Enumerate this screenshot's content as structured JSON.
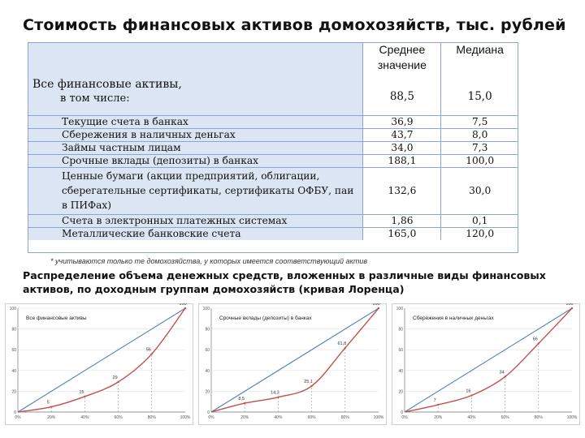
{
  "title": "Стоимость финансовых активов домохозяйств,  тыс. рублей",
  "table": {
    "columns": [
      "Среднее значение",
      "Медиана"
    ],
    "total": {
      "label": "Все финансовые активы,",
      "sublabel": "в том числе:",
      "mean": "88,5",
      "median": "15,0"
    },
    "rows": [
      {
        "label": "Текущие счета в банках",
        "mean": "36,9",
        "median": "7,5"
      },
      {
        "label": "Сбережения в наличных деньгах",
        "mean": "43,7",
        "median": "8,0"
      },
      {
        "label": "Займы частным лицам",
        "mean": "34,0",
        "median": "7,3"
      },
      {
        "label": "Срочные вклады (депозиты) в банках",
        "mean": "188,1",
        "median": "100,0"
      },
      {
        "label": "Ценные бумаги (акции предприятий, облигации, сберегательные сертификаты, сертификаты ОФБУ, паи в ПИФах)",
        "mean": "132,6",
        "median": "30,0"
      },
      {
        "label": "Счета в электронных платежных системах",
        "mean": "1,86",
        "median": "0,1"
      },
      {
        "label": "Металлические банковские счета",
        "mean": "165,0",
        "median": "120,0"
      }
    ]
  },
  "footnote": "* учитываются только те домохозяйства, у которых имеется соответствующий актив",
  "subtitle": "Распределение объема денежных средств, вложенных в различные виды финансовых активов, по доходным группам домохозяйств (кривая Лоренца)",
  "chart_data": [
    {
      "type": "line",
      "title": "Все финансовые активы",
      "x": [
        0,
        20,
        40,
        60,
        80,
        100
      ],
      "series": [
        {
          "values": [
            0,
            5,
            15,
            29,
            56,
            100
          ]
        }
      ],
      "point_labels": [
        "5",
        "15",
        "29",
        "56",
        "100"
      ],
      "xticks": [
        "0%",
        "20%",
        "40%",
        "60%",
        "80%",
        "100%"
      ],
      "yticks": [
        "0",
        "20",
        "40",
        "60",
        "80",
        "100"
      ],
      "ylim": [
        0,
        100
      ],
      "xlim": [
        0,
        100
      ]
    },
    {
      "type": "line",
      "title": "Срочные вклады (депозиты) в банках",
      "x": [
        0,
        20,
        40,
        60,
        80,
        100
      ],
      "series": [
        {
          "values": [
            0,
            8.5,
            14.3,
            25.1,
            61.8,
            100
          ]
        }
      ],
      "point_labels": [
        "8,5",
        "14,3",
        "25,1",
        "61,8",
        "100"
      ],
      "xticks": [
        "0%",
        "20%",
        "40%",
        "60%",
        "80%",
        "100%"
      ],
      "yticks": [
        "0",
        "20",
        "40",
        "60",
        "80",
        "100"
      ],
      "ylim": [
        0,
        100
      ],
      "xlim": [
        0,
        100
      ]
    },
    {
      "type": "line",
      "title": "Сбережения в наличных деньгах",
      "x": [
        0,
        20,
        40,
        60,
        80,
        100
      ],
      "series": [
        {
          "values": [
            0,
            7,
            16,
            34,
            66,
            100
          ]
        }
      ],
      "point_labels": [
        "7",
        "16",
        "34",
        "66",
        "100"
      ],
      "xticks": [
        "0%",
        "20%",
        "40%",
        "60%",
        "80%",
        "100%"
      ],
      "yticks": [
        "0",
        "20",
        "40",
        "60",
        "80",
        "100"
      ],
      "ylim": [
        0,
        100
      ],
      "xlim": [
        0,
        100
      ]
    }
  ],
  "colors": {
    "curve": "#c0504d",
    "diagonal": "#4f7fbf",
    "table_fill": "#dce5f3",
    "grid": "#8da5c8"
  }
}
